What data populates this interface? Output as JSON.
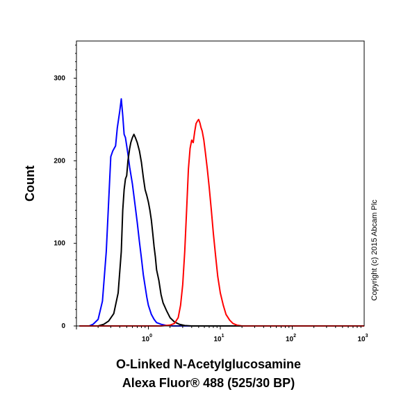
{
  "chart_data": {
    "type": "line",
    "xlabel_line1": "O-Linked N-Acetylglucosamine",
    "xlabel_line2": "Alexa Fluor® 488 (525/30 BP)",
    "ylabel": "Count",
    "xscale": "log",
    "xlim": [
      0.1,
      1000
    ],
    "ylim": [
      0,
      345
    ],
    "yticks": [
      0,
      100,
      200,
      300
    ],
    "xticks": [
      {
        "value": 1,
        "base": "10",
        "exp": "0"
      },
      {
        "value": 10,
        "base": "10",
        "exp": "1"
      },
      {
        "value": 100,
        "base": "10",
        "exp": "2"
      },
      {
        "value": 1000,
        "base": "10",
        "exp": "3"
      }
    ],
    "grid": false,
    "copyright": "Copyright (c) 2015 Abcam Plc",
    "series": [
      {
        "color": "#0000ff",
        "points": [
          [
            0.11,
            0
          ],
          [
            0.15,
            0
          ],
          [
            0.17,
            2
          ],
          [
            0.2,
            8
          ],
          [
            0.23,
            30
          ],
          [
            0.26,
            90
          ],
          [
            0.28,
            150
          ],
          [
            0.3,
            205
          ],
          [
            0.32,
            212
          ],
          [
            0.35,
            218
          ],
          [
            0.37,
            240
          ],
          [
            0.4,
            260
          ],
          [
            0.42,
            275
          ],
          [
            0.44,
            255
          ],
          [
            0.46,
            232
          ],
          [
            0.48,
            228
          ],
          [
            0.5,
            218
          ],
          [
            0.52,
            208
          ],
          [
            0.55,
            192
          ],
          [
            0.6,
            172
          ],
          [
            0.65,
            148
          ],
          [
            0.7,
            125
          ],
          [
            0.75,
            102
          ],
          [
            0.8,
            82
          ],
          [
            0.85,
            62
          ],
          [
            0.9,
            48
          ],
          [
            0.95,
            35
          ],
          [
            1.0,
            25
          ],
          [
            1.1,
            14
          ],
          [
            1.2,
            8
          ],
          [
            1.3,
            4
          ],
          [
            1.5,
            2
          ],
          [
            1.8,
            0.5
          ],
          [
            2.2,
            0
          ],
          [
            1000,
            0
          ]
        ]
      },
      {
        "color": "#000000",
        "points": [
          [
            0.11,
            0
          ],
          [
            0.2,
            0
          ],
          [
            0.24,
            2
          ],
          [
            0.28,
            6
          ],
          [
            0.33,
            15
          ],
          [
            0.38,
            40
          ],
          [
            0.42,
            90
          ],
          [
            0.44,
            140
          ],
          [
            0.46,
            165
          ],
          [
            0.48,
            178
          ],
          [
            0.5,
            182
          ],
          [
            0.52,
            200
          ],
          [
            0.55,
            215
          ],
          [
            0.57,
            222
          ],
          [
            0.6,
            228
          ],
          [
            0.63,
            232
          ],
          [
            0.66,
            228
          ],
          [
            0.7,
            222
          ],
          [
            0.75,
            212
          ],
          [
            0.8,
            198
          ],
          [
            0.85,
            180
          ],
          [
            0.9,
            165
          ],
          [
            0.95,
            158
          ],
          [
            1.0,
            150
          ],
          [
            1.05,
            140
          ],
          [
            1.1,
            128
          ],
          [
            1.15,
            112
          ],
          [
            1.2,
            96
          ],
          [
            1.25,
            84
          ],
          [
            1.3,
            68
          ],
          [
            1.4,
            55
          ],
          [
            1.5,
            38
          ],
          [
            1.6,
            28
          ],
          [
            1.8,
            18
          ],
          [
            2.0,
            10
          ],
          [
            2.3,
            5
          ],
          [
            2.7,
            2
          ],
          [
            3.2,
            0.5
          ],
          [
            4.0,
            0
          ],
          [
            1000,
            0
          ]
        ]
      },
      {
        "color": "#ff0000",
        "points": [
          [
            0.11,
            0
          ],
          [
            1.5,
            0
          ],
          [
            2.0,
            1
          ],
          [
            2.3,
            3
          ],
          [
            2.6,
            10
          ],
          [
            2.8,
            25
          ],
          [
            3.0,
            50
          ],
          [
            3.2,
            90
          ],
          [
            3.4,
            140
          ],
          [
            3.6,
            190
          ],
          [
            3.8,
            215
          ],
          [
            4.0,
            225
          ],
          [
            4.2,
            222
          ],
          [
            4.4,
            235
          ],
          [
            4.6,
            245
          ],
          [
            4.8,
            248
          ],
          [
            5.0,
            250
          ],
          [
            5.2,
            246
          ],
          [
            5.4,
            240
          ],
          [
            5.6,
            236
          ],
          [
            5.9,
            225
          ],
          [
            6.2,
            210
          ],
          [
            6.6,
            190
          ],
          [
            7.0,
            168
          ],
          [
            7.5,
            140
          ],
          [
            8.0,
            112
          ],
          [
            8.6,
            85
          ],
          [
            9.2,
            60
          ],
          [
            10,
            40
          ],
          [
            11,
            25
          ],
          [
            12,
            14
          ],
          [
            13.5,
            7
          ],
          [
            15,
            3
          ],
          [
            17,
            1
          ],
          [
            20,
            0
          ],
          [
            1000,
            0
          ]
        ]
      }
    ]
  }
}
